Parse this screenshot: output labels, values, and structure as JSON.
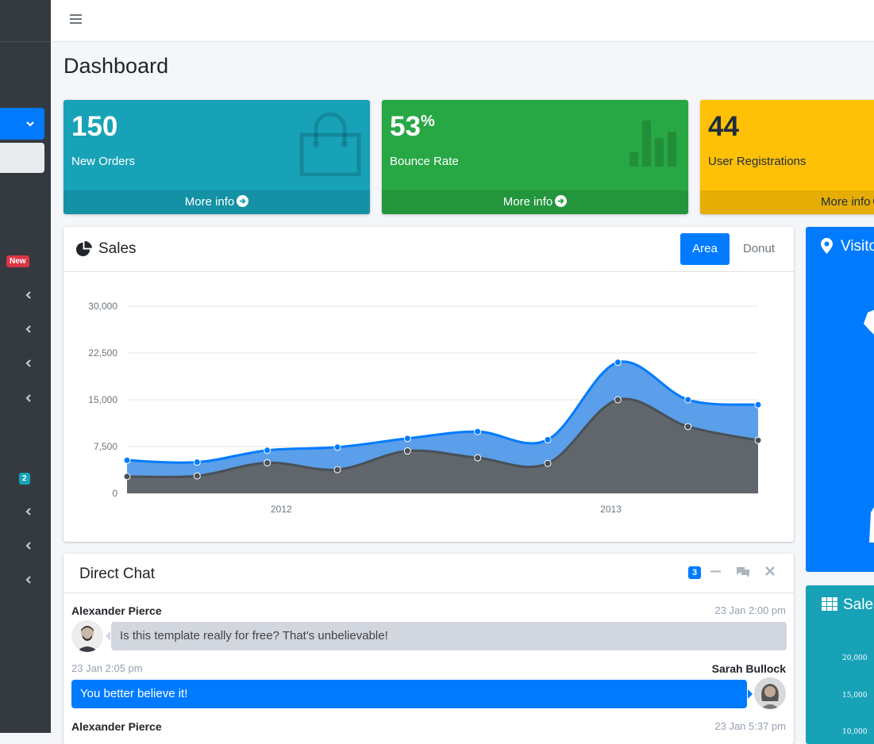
{
  "header": {
    "title": "Dashboard"
  },
  "sidebar": {
    "badges": {
      "new": "New",
      "count": "2"
    }
  },
  "stats": [
    {
      "value": "150",
      "suffix": "",
      "label": "New Orders",
      "link": "More info",
      "icon": "shopping-bag-icon",
      "color": "#17a2b8"
    },
    {
      "value": "53",
      "suffix": "%",
      "label": "Bounce Rate",
      "link": "More info",
      "icon": "bar-chart-icon",
      "color": "#28a745"
    },
    {
      "value": "44",
      "suffix": "",
      "label": "User Registrations",
      "link": "More info",
      "icon": "user-plus-icon",
      "color": "#ffc107"
    }
  ],
  "sales": {
    "title": "Sales",
    "tabs": {
      "area": "Area",
      "donut": "Donut"
    }
  },
  "chart_data": {
    "type": "area",
    "title": "",
    "y_ticks": [
      "30,000",
      "22,500",
      "15,000",
      "7,500",
      "0"
    ],
    "ylim": [
      0,
      30000
    ],
    "x_labels": [
      {
        "label": "2012",
        "at": 2.2
      },
      {
        "label": "2013",
        "at": 6.9
      }
    ],
    "grid": true,
    "series": [
      {
        "values": [
          5300,
          5000,
          6900,
          7400,
          8800,
          9900,
          8600,
          21000,
          15000,
          14200
        ],
        "color": "#5b9ee9",
        "stroke": "#007bff"
      },
      {
        "values": [
          2700,
          2800,
          4900,
          3800,
          6800,
          5700,
          4800,
          15000,
          10700,
          8500
        ],
        "color": "#60666c",
        "stroke": "#495057"
      }
    ]
  },
  "chat": {
    "title": "Direct Chat",
    "badge": "3",
    "messages": [
      {
        "name": "Alexander Pierce",
        "time": "23 Jan 2:00 pm",
        "text": "Is this template really for free? That's unbelievable!"
      },
      {
        "name": "Sarah Bullock",
        "time": "23 Jan 2:05 pm",
        "text": "You better believe it!"
      },
      {
        "name": "Alexander Pierce",
        "time": "23 Jan 5:37 pm"
      }
    ]
  },
  "visitors": {
    "title": "Visitors"
  },
  "sales_graph": {
    "title": "Sales Graph",
    "ticks": [
      "20,000",
      "15,000",
      "10,000"
    ]
  }
}
